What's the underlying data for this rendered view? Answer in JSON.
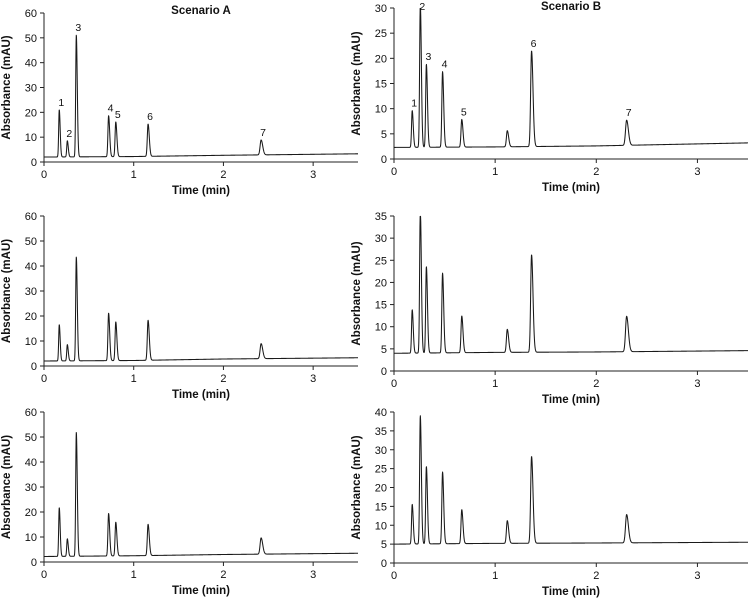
{
  "chart_data": [
    {
      "id": "A1",
      "type": "line",
      "title": "Scenario A",
      "xlabel": "Time (min)",
      "ylabel": "Absorbance (mAU)",
      "xlim": [
        0,
        3.5
      ],
      "ylim": [
        0,
        60
      ],
      "xticks": [
        0,
        1,
        2,
        3
      ],
      "yticks": [
        0,
        10,
        20,
        30,
        40,
        50,
        60
      ],
      "baseline": [
        [
          0,
          2.0
        ],
        [
          1.0,
          2.2
        ],
        [
          2.0,
          2.7
        ],
        [
          3.5,
          3.3
        ]
      ],
      "peaks": [
        {
          "rt": 0.17,
          "height": 19,
          "label": "1"
        },
        {
          "rt": 0.26,
          "height": 6.5,
          "label": "2"
        },
        {
          "rt": 0.36,
          "height": 49,
          "label": "3"
        },
        {
          "rt": 0.72,
          "height": 16.5,
          "label": "4"
        },
        {
          "rt": 0.8,
          "height": 14,
          "label": "5"
        },
        {
          "rt": 1.16,
          "height": 13,
          "label": "6"
        },
        {
          "rt": 2.42,
          "height": 6,
          "label": "7"
        }
      ]
    },
    {
      "id": "B1",
      "type": "line",
      "title": "Scenario B",
      "xlabel": "Time (min)",
      "ylabel": "Absorbance (mAU)",
      "xlim": [
        0,
        3.5
      ],
      "ylim": [
        0,
        30
      ],
      "xticks": [
        0,
        1,
        2,
        3
      ],
      "yticks": [
        0,
        5,
        10,
        15,
        20,
        25,
        30
      ],
      "baseline": [
        [
          0,
          2.3
        ],
        [
          1.0,
          2.4
        ],
        [
          2.0,
          2.6
        ],
        [
          3.5,
          3.2
        ]
      ],
      "peaks": [
        {
          "rt": 0.18,
          "height": 7.3,
          "label": "1"
        },
        {
          "rt": 0.26,
          "height": 28.5,
          "label": "2"
        },
        {
          "rt": 0.32,
          "height": 16.5,
          "label": "3"
        },
        {
          "rt": 0.48,
          "height": 15,
          "label": "4"
        },
        {
          "rt": 0.67,
          "height": 5.5,
          "label": "5"
        },
        {
          "rt": 1.12,
          "height": 3.2,
          "label": ""
        },
        {
          "rt": 1.36,
          "height": 19,
          "label": "6"
        },
        {
          "rt": 2.3,
          "height": 5,
          "label": "7"
        }
      ]
    },
    {
      "id": "A2",
      "type": "line",
      "title": "",
      "xlabel": "Time (min)",
      "ylabel": "Absorbance (mAU)",
      "xlim": [
        0,
        3.5
      ],
      "ylim": [
        0,
        60
      ],
      "xticks": [
        0,
        1,
        2,
        3
      ],
      "yticks": [
        0,
        10,
        20,
        30,
        40,
        50,
        60
      ],
      "baseline": [
        [
          0,
          2.0
        ],
        [
          1.0,
          2.2
        ],
        [
          2.0,
          2.8
        ],
        [
          3.5,
          3.3
        ]
      ],
      "peaks": [
        {
          "rt": 0.17,
          "height": 14.5,
          "label": ""
        },
        {
          "rt": 0.26,
          "height": 6.5,
          "label": ""
        },
        {
          "rt": 0.36,
          "height": 41.5,
          "label": ""
        },
        {
          "rt": 0.72,
          "height": 19,
          "label": ""
        },
        {
          "rt": 0.8,
          "height": 15.5,
          "label": ""
        },
        {
          "rt": 1.16,
          "height": 16,
          "label": ""
        },
        {
          "rt": 2.42,
          "height": 6,
          "label": ""
        }
      ]
    },
    {
      "id": "B2",
      "type": "line",
      "title": "",
      "xlabel": "Time (min)",
      "ylabel": "Absorbance (mAU)",
      "xlim": [
        0,
        3.5
      ],
      "ylim": [
        0,
        35
      ],
      "xticks": [
        0,
        1,
        2,
        3
      ],
      "yticks": [
        0,
        5,
        10,
        15,
        20,
        25,
        30,
        35
      ],
      "baseline": [
        [
          0,
          4.0
        ],
        [
          1.0,
          4.2
        ],
        [
          2.0,
          4.3
        ],
        [
          3.5,
          4.6
        ]
      ],
      "peaks": [
        {
          "rt": 0.18,
          "height": 9.8,
          "label": ""
        },
        {
          "rt": 0.26,
          "height": 32.5,
          "label": ""
        },
        {
          "rt": 0.32,
          "height": 19.5,
          "label": ""
        },
        {
          "rt": 0.48,
          "height": 18,
          "label": ""
        },
        {
          "rt": 0.67,
          "height": 8.3,
          "label": ""
        },
        {
          "rt": 1.12,
          "height": 5.2,
          "label": ""
        },
        {
          "rt": 1.36,
          "height": 22,
          "label": ""
        },
        {
          "rt": 2.3,
          "height": 8,
          "label": ""
        }
      ]
    },
    {
      "id": "A3",
      "type": "line",
      "title": "",
      "xlabel": "Time (min)",
      "ylabel": "Absorbance (mAU)",
      "xlim": [
        0,
        3.5
      ],
      "ylim": [
        0,
        60
      ],
      "xticks": [
        0,
        1,
        2,
        3
      ],
      "yticks": [
        0,
        10,
        20,
        30,
        40,
        50,
        60
      ],
      "baseline": [
        [
          0,
          2.2
        ],
        [
          1.0,
          2.5
        ],
        [
          2.0,
          3.0
        ],
        [
          3.5,
          3.5
        ]
      ],
      "peaks": [
        {
          "rt": 0.17,
          "height": 19.5,
          "label": ""
        },
        {
          "rt": 0.26,
          "height": 7,
          "label": ""
        },
        {
          "rt": 0.36,
          "height": 49.5,
          "label": ""
        },
        {
          "rt": 0.72,
          "height": 17,
          "label": ""
        },
        {
          "rt": 0.8,
          "height": 13.5,
          "label": ""
        },
        {
          "rt": 1.16,
          "height": 12.5,
          "label": ""
        },
        {
          "rt": 2.42,
          "height": 6.5,
          "label": ""
        }
      ]
    },
    {
      "id": "B3",
      "type": "line",
      "title": "",
      "xlabel": "Time (min)",
      "ylabel": "Absorbance (mAU)",
      "xlim": [
        0,
        3.5
      ],
      "ylim": [
        0,
        40
      ],
      "xticks": [
        0,
        1,
        2,
        3
      ],
      "yticks": [
        0,
        5,
        10,
        15,
        20,
        25,
        30,
        35,
        40
      ],
      "baseline": [
        [
          0,
          5.0
        ],
        [
          1.0,
          5.2
        ],
        [
          2.0,
          5.3
        ],
        [
          3.5,
          5.5
        ]
      ],
      "peaks": [
        {
          "rt": 0.18,
          "height": 10.5,
          "label": ""
        },
        {
          "rt": 0.26,
          "height": 34,
          "label": ""
        },
        {
          "rt": 0.32,
          "height": 20.5,
          "label": ""
        },
        {
          "rt": 0.48,
          "height": 19,
          "label": ""
        },
        {
          "rt": 0.67,
          "height": 9,
          "label": ""
        },
        {
          "rt": 1.12,
          "height": 6,
          "label": ""
        },
        {
          "rt": 1.36,
          "height": 23,
          "label": ""
        },
        {
          "rt": 2.3,
          "height": 7.5,
          "label": ""
        }
      ]
    }
  ]
}
